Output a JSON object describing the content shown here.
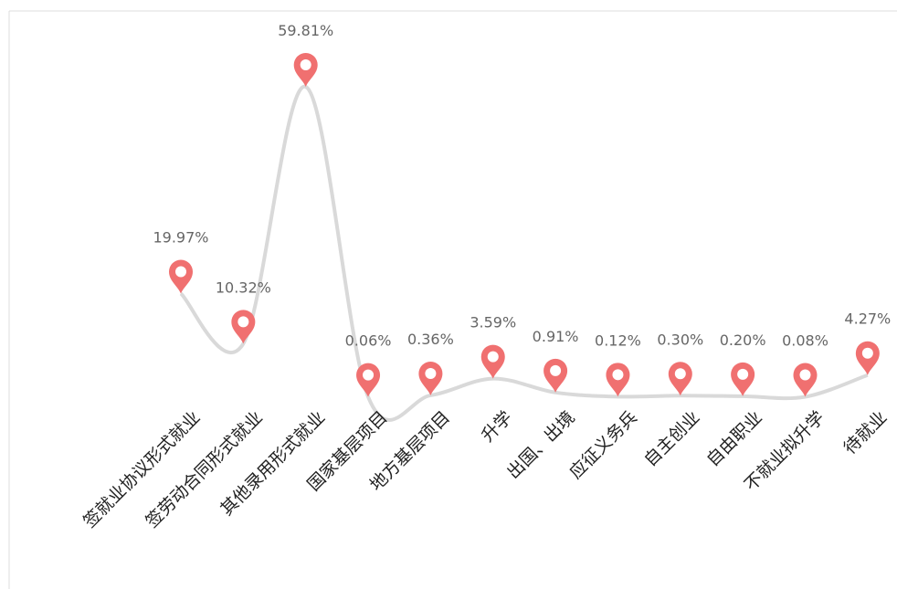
{
  "chart_data": {
    "type": "line",
    "categories": [
      "签就业协议形式就业",
      "签劳动合同形式就业",
      "其他录用形式就业",
      "国家基层项目",
      "地方基层项目",
      "升学",
      "出国、出境",
      "应征义务兵",
      "自主创业",
      "自由职业",
      "不就业拟升学",
      "待就业"
    ],
    "values": [
      19.97,
      10.32,
      59.81,
      0.06,
      0.36,
      3.59,
      0.91,
      0.12,
      0.3,
      0.2,
      0.08,
      4.27
    ],
    "value_labels": [
      "19.97%",
      "10.32%",
      "59.81%",
      "0.06%",
      "0.36%",
      "3.59%",
      "0.91%",
      "0.12%",
      "0.30%",
      "0.20%",
      "0.08%",
      "4.27%"
    ],
    "color": "#d9d9d9",
    "marker_color": "#f07070"
  }
}
